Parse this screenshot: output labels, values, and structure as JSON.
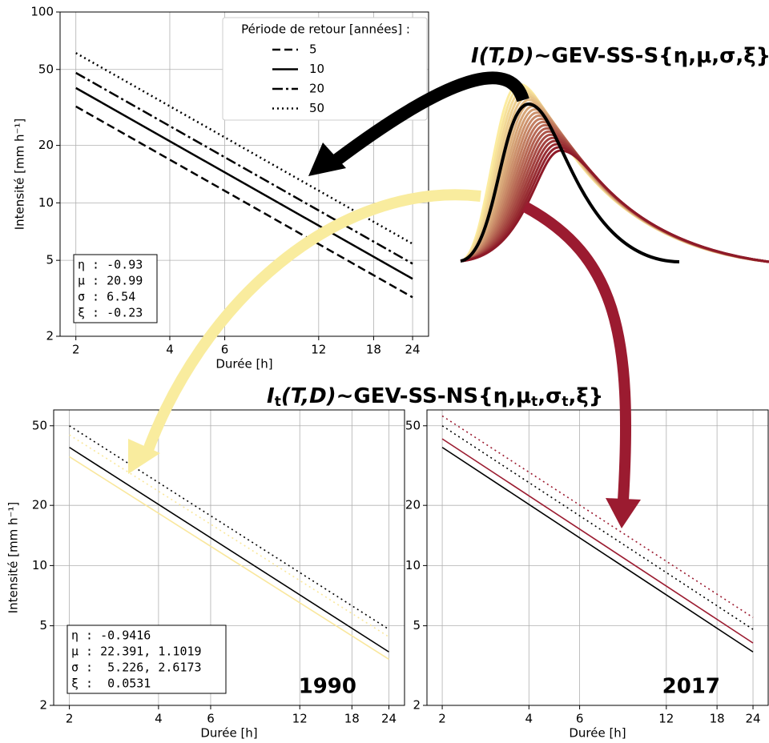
{
  "formulas": {
    "stationary": [
      "I(T,D)",
      "~GEV-SS-S{η,μ,σ,ξ}"
    ],
    "nonstationary": [
      "I",
      "t",
      "(T,D)",
      "~GEV-SS-NS{η,μ",
      "t",
      ",σ",
      "t",
      ",ξ}"
    ]
  },
  "chart_data": [
    {
      "type": "line",
      "xlabel": "Durée [h]",
      "ylabel": "Intensité [mm h⁻¹]",
      "xscale": "log",
      "yscale": "log",
      "grid": true,
      "xlim": [
        1.78,
        27
      ],
      "ylim": [
        2,
        100
      ],
      "xticks": [
        2,
        4,
        6,
        12,
        18,
        24
      ],
      "yticks": [
        2,
        5,
        10,
        20,
        50,
        100
      ],
      "x": [
        2,
        24
      ],
      "legend_title": "Période de retour [années] :",
      "legend_position": "upper right",
      "series": [
        {
          "name": "5",
          "color": "#000000",
          "dash": "dashed",
          "values": [
            32,
            3.2
          ]
        },
        {
          "name": "10",
          "color": "#000000",
          "dash": "solid",
          "values": [
            40,
            4.0
          ]
        },
        {
          "name": "20",
          "color": "#000000",
          "dash": "dashdot",
          "values": [
            48,
            4.8
          ]
        },
        {
          "name": "50",
          "color": "#000000",
          "dash": "dotted",
          "values": [
            61,
            6.1
          ]
        }
      ],
      "params": [
        "η : -0.93",
        "μ : 20.99",
        "σ : 6.54",
        "ξ : -0.23"
      ]
    },
    {
      "type": "line",
      "xlabel": "Durée [h]",
      "ylabel": "Intensité [mm h⁻¹]",
      "xscale": "log",
      "yscale": "log",
      "grid": true,
      "xlim": [
        1.77,
        27.1
      ],
      "ylim": [
        2,
        60
      ],
      "xticks": [
        2,
        4,
        6,
        12,
        18,
        24
      ],
      "yticks": [
        2,
        5,
        10,
        20,
        50
      ],
      "x": [
        2,
        24
      ],
      "series": [
        {
          "color": "#000000",
          "dash": "solid",
          "values": [
            39,
            3.7
          ]
        },
        {
          "color": "#000000",
          "dash": "dotted",
          "values": [
            50,
            4.8
          ]
        },
        {
          "color": "#f9e79c",
          "dash": "solid",
          "values": [
            35,
            3.4
          ]
        },
        {
          "color": "#f9e79c",
          "dash": "dotted",
          "values": [
            45,
            4.4
          ]
        }
      ],
      "params": [
        "η : -0.9416",
        "μ : 22.391, 1.1019",
        "σ :  5.226, 2.6173",
        "ξ :  0.0531"
      ],
      "year": "1990"
    },
    {
      "type": "line",
      "xlabel": "Durée [h]",
      "xscale": "log",
      "yscale": "log",
      "grid": true,
      "xlim": [
        1.77,
        27.1
      ],
      "ylim": [
        2,
        60
      ],
      "xticks": [
        2,
        4,
        6,
        12,
        18,
        24
      ],
      "yticks": [
        2,
        5,
        10,
        20,
        50
      ],
      "x": [
        2,
        24
      ],
      "series": [
        {
          "color": "#9b1b30",
          "dash": "solid",
          "values": [
            43,
            4.1
          ]
        },
        {
          "color": "#9b1b30",
          "dash": "dotted",
          "values": [
            56,
            5.5
          ]
        },
        {
          "color": "#000000",
          "dash": "solid",
          "values": [
            39,
            3.7
          ]
        },
        {
          "color": "#000000",
          "dash": "dotted",
          "values": [
            50,
            4.8
          ]
        }
      ],
      "year": "2017"
    }
  ]
}
